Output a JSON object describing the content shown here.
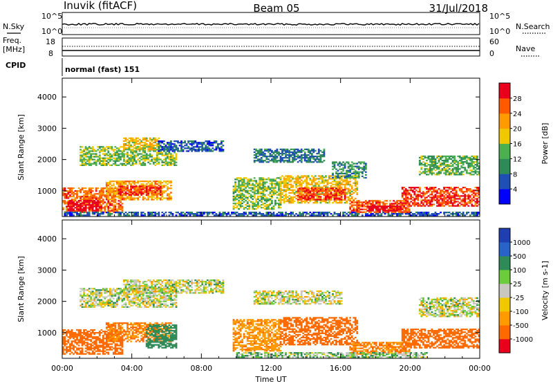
{
  "header": {
    "station": "Inuvik (fitACF)",
    "beam": "Beam 05",
    "date": "31/Jul/2018"
  },
  "status_panels": {
    "nsky_label": "N.Sky",
    "nsearch_label": "N.Search",
    "noise_ticks_left": [
      "10^5",
      "10^0"
    ],
    "noise_ticks_right": [
      "10^5",
      "10^0"
    ],
    "freq_label_line1": "Freq.",
    "freq_label_line2": "[MHz]",
    "freq_ticks": [
      "18",
      "8"
    ],
    "nave_label": "Nave",
    "nave_ticks": [
      "60",
      "0"
    ],
    "cpid_label": "CPID",
    "cpid_value": "normal (fast) 151"
  },
  "colors": {
    "scale_red": "#e8001c",
    "scale_orange": "#ff7a00",
    "scale_yellow": "#f0c800",
    "scale_green": "#2e8b57",
    "scale_blue": "#1f4fb4",
    "ground_scatter": "#bdbdb5"
  },
  "chart_data": [
    {
      "type": "heatmap",
      "title": "",
      "xlabel": "Time UT",
      "ylabel": "Slant Range [km]",
      "x_ticks": [
        "00:00",
        "04:00",
        "08:00",
        "12:00",
        "16:00",
        "20:00",
        "00:00"
      ],
      "y_ticks": [
        "1000",
        "2000",
        "3000",
        "4000"
      ],
      "x_range_hours": [
        0,
        24
      ],
      "y_range_km": [
        180,
        4600
      ],
      "colorbar": {
        "label": "Power [dB]",
        "ticks": [
          "4",
          "8",
          "12",
          "16",
          "20",
          "24",
          "28"
        ],
        "range": [
          0,
          30
        ],
        "colors": [
          "#0000ff",
          "#1f4fb4",
          "#2e8b57",
          "#4caf50",
          "#f0c800",
          "#ff9a00",
          "#ff5a00",
          "#e8001c"
        ]
      },
      "regions": [
        {
          "t0": 0.0,
          "t1": 3.5,
          "r0": 300,
          "r1": 1100,
          "power": 24
        },
        {
          "t0": 0.3,
          "t1": 2.2,
          "r0": 350,
          "r1": 700,
          "power": 30
        },
        {
          "t0": 2.5,
          "t1": 6.2,
          "r0": 700,
          "r1": 1300,
          "power": 20
        },
        {
          "t0": 3.2,
          "t1": 5.6,
          "r0": 850,
          "r1": 1150,
          "power": 27
        },
        {
          "t0": 1.0,
          "t1": 6.5,
          "r0": 1800,
          "r1": 2400,
          "power": 14
        },
        {
          "t0": 3.5,
          "t1": 5.5,
          "r0": 2300,
          "r1": 2700,
          "power": 18
        },
        {
          "t0": 5.5,
          "t1": 9.2,
          "r0": 2250,
          "r1": 2600,
          "power": 6
        },
        {
          "t0": 0.0,
          "t1": 24.0,
          "r0": 200,
          "r1": 330,
          "power": 6
        },
        {
          "t0": 9.8,
          "t1": 12.5,
          "r0": 400,
          "r1": 1400,
          "power": 14
        },
        {
          "t0": 11.0,
          "t1": 15.0,
          "r0": 1900,
          "r1": 2350,
          "power": 8
        },
        {
          "t0": 12.5,
          "t1": 17.0,
          "r0": 600,
          "r1": 1500,
          "power": 18
        },
        {
          "t0": 13.5,
          "t1": 16.2,
          "r0": 700,
          "r1": 1100,
          "power": 26
        },
        {
          "t0": 15.5,
          "t1": 17.5,
          "r0": 1400,
          "r1": 1900,
          "power": 10
        },
        {
          "t0": 16.5,
          "t1": 20.0,
          "r0": 300,
          "r1": 700,
          "power": 25
        },
        {
          "t0": 17.5,
          "t1": 19.5,
          "r0": 350,
          "r1": 500,
          "power": 30
        },
        {
          "t0": 19.5,
          "t1": 24.0,
          "r0": 500,
          "r1": 1100,
          "power": 26
        },
        {
          "t0": 20.5,
          "t1": 24.0,
          "r0": 1500,
          "r1": 2100,
          "power": 12
        }
      ]
    },
    {
      "type": "heatmap",
      "title": "",
      "xlabel": "Time UT",
      "ylabel": "Slant Range [km]",
      "x_ticks": [
        "00:00",
        "04:00",
        "08:00",
        "12:00",
        "16:00",
        "20:00",
        "00:00"
      ],
      "y_ticks": [
        "1000",
        "2000",
        "3000",
        "4000"
      ],
      "x_range_hours": [
        0,
        24
      ],
      "y_range_km": [
        180,
        4600
      ],
      "colorbar": {
        "label": "Velocity [m s-1]",
        "ticks": [
          "1000",
          "500",
          "100",
          "25",
          "-25",
          "-100",
          "-500",
          "-1000"
        ],
        "colors": [
          "#1f3fb0",
          "#2a63c8",
          "#2e8b57",
          "#6ccc3c",
          "#c8c8c0",
          "#f0c800",
          "#ff9a00",
          "#ff6a00",
          "#e8001c"
        ]
      },
      "regions": [
        {
          "t0": 0.0,
          "t1": 3.5,
          "r0": 300,
          "r1": 1100,
          "velocity": -300
        },
        {
          "t0": 2.5,
          "t1": 6.2,
          "r0": 700,
          "r1": 1300,
          "velocity": -200
        },
        {
          "t0": 4.8,
          "t1": 6.5,
          "r0": 500,
          "r1": 1250,
          "velocity": 200
        },
        {
          "t0": 1.0,
          "t1": 6.5,
          "r0": 1800,
          "r1": 2400,
          "velocity": 0
        },
        {
          "t0": 3.5,
          "t1": 9.2,
          "r0": 2250,
          "r1": 2700,
          "velocity": 0
        },
        {
          "t0": 9.8,
          "t1": 12.5,
          "r0": 400,
          "r1": 1400,
          "velocity": -150
        },
        {
          "t0": 12.5,
          "t1": 17.0,
          "r0": 600,
          "r1": 1500,
          "velocity": -300
        },
        {
          "t0": 11.0,
          "t1": 16.0,
          "r0": 1900,
          "r1": 2350,
          "velocity": 0
        },
        {
          "t0": 16.5,
          "t1": 20.0,
          "r0": 300,
          "r1": 700,
          "velocity": -200
        },
        {
          "t0": 19.5,
          "t1": 24.0,
          "r0": 500,
          "r1": 1100,
          "velocity": -400
        },
        {
          "t0": 20.5,
          "t1": 24.0,
          "r0": 1500,
          "r1": 2100,
          "velocity": 0
        },
        {
          "t0": 10.0,
          "t1": 21.0,
          "r0": 200,
          "r1": 380,
          "velocity": 40
        }
      ]
    }
  ]
}
